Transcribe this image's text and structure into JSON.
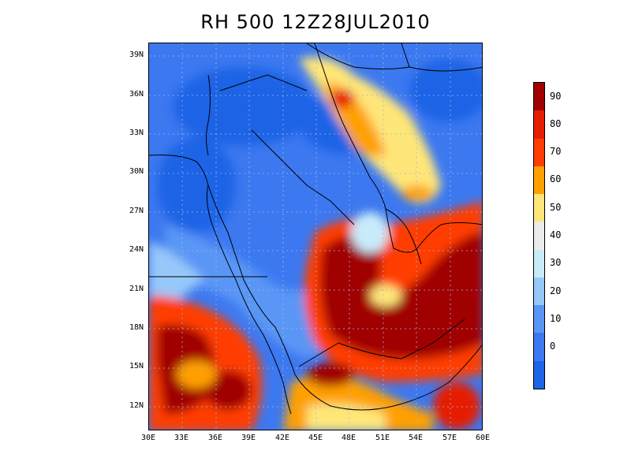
{
  "title": "RH 500  12Z28JUL2010",
  "lat_labels": [
    "39N",
    "36N",
    "33N",
    "30N",
    "27N",
    "24N",
    "21N",
    "18N",
    "15N",
    "12N"
  ],
  "lon_labels": [
    "30E",
    "33E",
    "36E",
    "39E",
    "42E",
    "45E",
    "48E",
    "51E",
    "54E",
    "57E",
    "60E"
  ],
  "colorbar": {
    "levels": [
      "0",
      "10",
      "20",
      "30",
      "40",
      "50",
      "60",
      "70",
      "80",
      "90"
    ],
    "colors": [
      "#1e64e6",
      "#3c78f0",
      "#5a96f5",
      "#96c8fa",
      "#c8ebfa",
      "#ebebeb",
      "#ffe678",
      "#ffa000",
      "#ff3c00",
      "#e61e00",
      "#a00000"
    ]
  }
}
